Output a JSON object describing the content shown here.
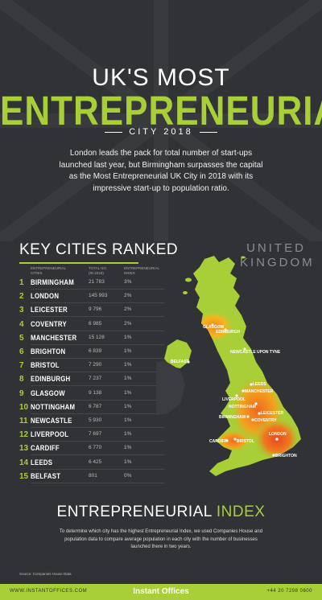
{
  "header": {
    "title_top": "UK'S MOST",
    "title_main": "ENTREPRENEURIAL",
    "title_sub": "CITY 2018",
    "intro": "London leads the pack for total number of start-ups launched last year, but Birmingham surpasses the capital as the Most Entrepreneurial UK City in 2018 with its impressive start-up to population ratio."
  },
  "ranking": {
    "title": "KEY CITIES RANKED",
    "col_city": "ENTREPRENEURIAL CITIES",
    "col_startups": "TOTAL NO. (IN 2018)",
    "col_ratio": "ENTREPRENEURIAL INDEX",
    "rows": [
      {
        "rank": "1",
        "city": "BIRMINGHAM",
        "startups": "21 783",
        "ratio": "3%"
      },
      {
        "rank": "2",
        "city": "LONDON",
        "startups": "145 993",
        "ratio": "2%"
      },
      {
        "rank": "3",
        "city": "LEICESTER",
        "startups": "9 796",
        "ratio": "2%"
      },
      {
        "rank": "4",
        "city": "COVENTRY",
        "startups": "6 985",
        "ratio": "2%"
      },
      {
        "rank": "5",
        "city": "MANCHESTER",
        "startups": "15 128",
        "ratio": "1%"
      },
      {
        "rank": "6",
        "city": "BRIGHTON",
        "startups": "6 839",
        "ratio": "1%"
      },
      {
        "rank": "7",
        "city": "BRISTOL",
        "startups": "7 290",
        "ratio": "1%"
      },
      {
        "rank": "8",
        "city": "EDINBURGH",
        "startups": "7 237",
        "ratio": "1%"
      },
      {
        "rank": "9",
        "city": "GLASGOW",
        "startups": "9 138",
        "ratio": "1%"
      },
      {
        "rank": "10",
        "city": "NOTTINGHAM",
        "startups": "6 787",
        "ratio": "1%"
      },
      {
        "rank": "11",
        "city": "NEWCASTLE",
        "startups": "5 930",
        "ratio": "1%"
      },
      {
        "rank": "12",
        "city": "LIVERPOOL",
        "startups": "7 697",
        "ratio": "1%"
      },
      {
        "rank": "13",
        "city": "CARDIFF",
        "startups": "6 770",
        "ratio": "1%"
      },
      {
        "rank": "14",
        "city": "LEEDS",
        "startups": "6 425",
        "ratio": "1%"
      },
      {
        "rank": "15",
        "city": "BELFAST",
        "startups": "801",
        "ratio": "0%"
      }
    ]
  },
  "map": {
    "label_line1": "UNITED",
    "label_line2": "KINGDOM",
    "cities": {
      "glasgow": "GLASGOW",
      "edinburgh": "EDINBURGH",
      "newcastle": "NEWCASTLE UPON TYNE",
      "belfast": "BELFAST",
      "leeds": "LEEDS",
      "manchester": "MANCHESTER",
      "liverpool": "LIVERPOOL",
      "nottingham": "NOTTINGHAM",
      "birmingham": "BIRMINGHAM",
      "leicester": "LEICESTER",
      "coventry": "COVENTRY",
      "cardiff": "CARDIFF",
      "bristol": "BRISTOL",
      "london": "LONDON",
      "brighton": "BRIGHTON"
    },
    "colors": {
      "land": "#a8cf38",
      "hot": "#e8491d",
      "warm": "#f3a21e"
    }
  },
  "index_section": {
    "title_a": "ENTREPRENEURIAL ",
    "title_b": "INDEX",
    "text": "To determine which city has the highest Entrepreneurial Index, we used Companies House and population data to compare average population in each city with the number of businesses launched there in two years.",
    "source": "Source: Companies House Data"
  },
  "footer": {
    "url": "WWW.INSTANTOFFICES.COM",
    "brand": "Instant Offices",
    "phone": "+44 20 7298 0600"
  },
  "colors": {
    "background": "#303235",
    "accent": "#a8cf38"
  }
}
